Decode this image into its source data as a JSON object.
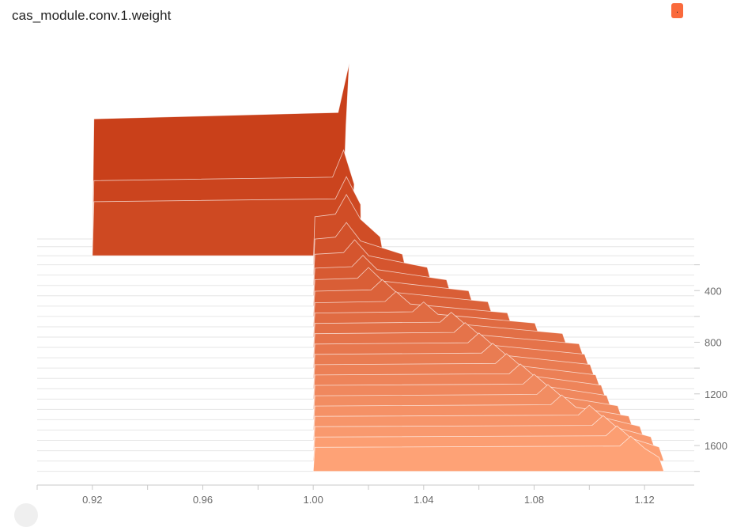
{
  "card": {
    "title": "cas_module.conv.1.weight",
    "run_chip_label": ".",
    "run_color": "#fa6a3c"
  },
  "chart_data": {
    "type": "area",
    "mode": "offset-histogram",
    "title": "cas_module.conv.1.weight",
    "x_ticks": [
      "0.92",
      "0.96",
      "1.00",
      "1.04",
      "1.08",
      "1.12"
    ],
    "step_ticks": [
      "400",
      "800",
      "1200",
      "1600"
    ],
    "xlim": [
      0.9,
      1.138
    ],
    "step_range": [
      0,
      1900
    ],
    "color_first": "#c9401a",
    "color_last": "#fea276",
    "series": [
      {
        "step": 0,
        "xmin": 0.92,
        "xmax": 1.013,
        "peak_x": 1.013,
        "peak_height": 1.0
      },
      {
        "step": 60,
        "xmin": 0.92,
        "xmax": 1.016,
        "peak_x": 1.011,
        "peak_height": 0.55
      },
      {
        "step": 130,
        "xmin": 0.92,
        "xmax": 1.019,
        "peak_x": 1.012,
        "peak_height": 0.45
      },
      {
        "step": 200,
        "xmin": 1.0,
        "xmax": 1.026,
        "peak_x": 1.012,
        "peak_height": 0.4
      },
      {
        "step": 280,
        "xmin": 1.0,
        "xmax": 1.034,
        "peak_x": 1.012,
        "peak_height": 0.3
      },
      {
        "step": 360,
        "xmin": 1.0,
        "xmax": 1.043,
        "peak_x": 1.015,
        "peak_height": 0.26
      },
      {
        "step": 440,
        "xmin": 1.0,
        "xmax": 1.05,
        "peak_x": 1.018,
        "peak_height": 0.23
      },
      {
        "step": 520,
        "xmin": 1.0,
        "xmax": 1.058,
        "peak_x": 1.02,
        "peak_height": 0.22
      },
      {
        "step": 600,
        "xmin": 1.0,
        "xmax": 1.065,
        "peak_x": 1.025,
        "peak_height": 0.21
      },
      {
        "step": 680,
        "xmin": 1.0,
        "xmax": 1.072,
        "peak_x": 1.03,
        "peak_height": 0.2
      },
      {
        "step": 760,
        "xmin": 1.0,
        "xmax": 1.082,
        "peak_x": 1.04,
        "peak_height": 0.2
      },
      {
        "step": 840,
        "xmin": 1.0,
        "xmax": 1.092,
        "peak_x": 1.05,
        "peak_height": 0.2
      },
      {
        "step": 920,
        "xmin": 1.0,
        "xmax": 1.098,
        "peak_x": 1.055,
        "peak_height": 0.2
      },
      {
        "step": 1000,
        "xmin": 1.0,
        "xmax": 1.1,
        "peak_x": 1.06,
        "peak_height": 0.2
      },
      {
        "step": 1080,
        "xmin": 1.0,
        "xmax": 1.102,
        "peak_x": 1.065,
        "peak_height": 0.2
      },
      {
        "step": 1160,
        "xmin": 1.0,
        "xmax": 1.104,
        "peak_x": 1.07,
        "peak_height": 0.2
      },
      {
        "step": 1240,
        "xmin": 1.0,
        "xmax": 1.106,
        "peak_x": 1.075,
        "peak_height": 0.2
      },
      {
        "step": 1320,
        "xmin": 1.0,
        "xmax": 1.108,
        "peak_x": 1.08,
        "peak_height": 0.2
      },
      {
        "step": 1400,
        "xmin": 1.0,
        "xmax": 1.112,
        "peak_x": 1.085,
        "peak_height": 0.2
      },
      {
        "step": 1480,
        "xmin": 1.0,
        "xmax": 1.116,
        "peak_x": 1.09,
        "peak_height": 0.2
      },
      {
        "step": 1560,
        "xmin": 1.0,
        "xmax": 1.12,
        "peak_x": 1.1,
        "peak_height": 0.2
      },
      {
        "step": 1640,
        "xmin": 1.0,
        "xmax": 1.124,
        "peak_x": 1.105,
        "peak_height": 0.2
      },
      {
        "step": 1720,
        "xmin": 1.0,
        "xmax": 1.127,
        "peak_x": 1.11,
        "peak_height": 0.2
      },
      {
        "step": 1800,
        "xmin": 1.0,
        "xmax": 1.127,
        "peak_x": 1.115,
        "peak_height": 0.2
      }
    ]
  }
}
